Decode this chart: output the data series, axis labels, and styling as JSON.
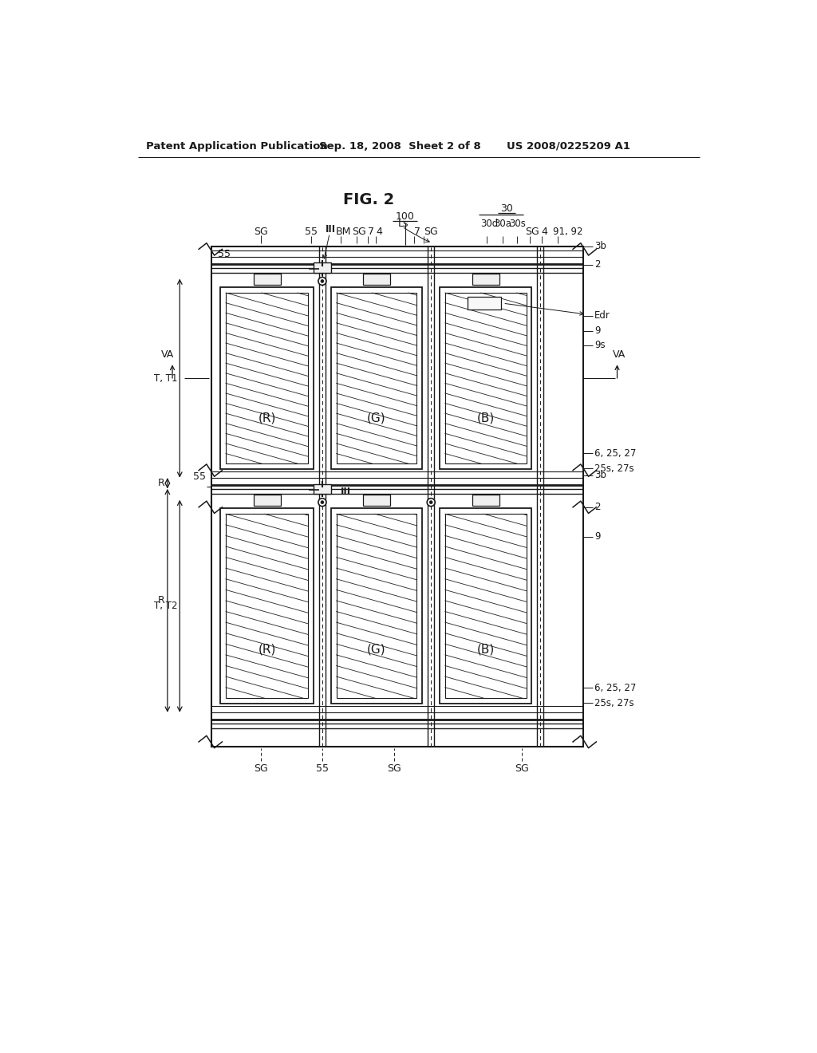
{
  "bg_color": "#ffffff",
  "lc": "#1a1a1a",
  "header_left": "Patent Application Publication",
  "header_center": "Sep. 18, 2008  Sheet 2 of 8",
  "header_right": "US 2008/0225209 A1",
  "fig_title": "FIG. 2",
  "sp_labels": [
    "(R)",
    "(G)",
    "(B)"
  ],
  "note": "All coordinates in 1024x1320 pixel space"
}
